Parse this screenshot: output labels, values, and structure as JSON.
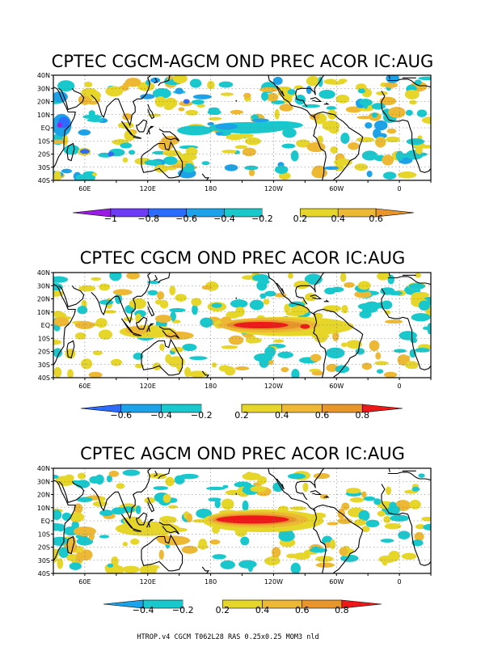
{
  "palette": {
    "-1.0": "#9c1ce6",
    "-0.8": "#6d3bf5",
    "-0.6": "#2b6cff",
    "-0.4": "#1ca2e8",
    "-0.2": "#18c8cc",
    "0.2": "#e6d62a",
    "0.4": "#edb833",
    "0.6": "#e8952a",
    "0.8": "#ee1818",
    "coast": "#000000",
    "grid": "#777777"
  },
  "panels": [
    {
      "title": "CPTEC CGCM-AGCM OND PREC ACOR IC:AUG",
      "lat_labels": [
        "40N",
        "30N",
        "20N",
        "10N",
        "EQ",
        "10S",
        "20S",
        "30S",
        "40S"
      ],
      "lon_labels": [
        "60E",
        "120E",
        "180",
        "120W",
        "60W",
        "0"
      ],
      "colorbar": {
        "levels": [
          -1.0,
          -0.8,
          -0.6,
          -0.4,
          -0.2,
          0.2,
          0.4,
          0.6
        ],
        "labels": [
          "-1",
          "-0.8",
          "-0.6",
          "-0.4",
          "-0.2",
          "0.2",
          "0.4",
          "0.6"
        ]
      }
    },
    {
      "title": "CPTEC CGCM OND PREC ACOR IC:AUG",
      "lat_labels": [
        "40N",
        "30N",
        "20N",
        "10N",
        "EQ",
        "10S",
        "20S",
        "30S",
        "40S"
      ],
      "lon_labels": [
        "60E",
        "120E",
        "180",
        "120W",
        "60W",
        "0"
      ],
      "colorbar": {
        "levels": [
          -0.6,
          -0.4,
          -0.2,
          0.2,
          0.4,
          0.6,
          0.8
        ],
        "labels": [
          "-0.6",
          "-0.4",
          "-0.2",
          "0.2",
          "0.4",
          "0.6",
          "0.8"
        ]
      }
    },
    {
      "title": "CPTEC AGCM OND PREC ACOR IC:AUG",
      "lat_labels": [
        "40N",
        "30N",
        "20N",
        "10N",
        "EQ",
        "10S",
        "20S",
        "30S",
        "40S"
      ],
      "lon_labels": [
        "60E",
        "120E",
        "180",
        "120W",
        "60W",
        "0"
      ],
      "colorbar": {
        "levels": [
          -0.4,
          -0.2,
          0.2,
          0.4,
          0.6,
          0.8
        ],
        "labels": [
          "-0.4",
          "-0.2",
          "0.2",
          "0.4",
          "0.6",
          "0.8"
        ]
      }
    }
  ],
  "footer": "HTROP.v4 CGCM T062L28 RAS 0.25x0.25 MOM3 nld"
}
